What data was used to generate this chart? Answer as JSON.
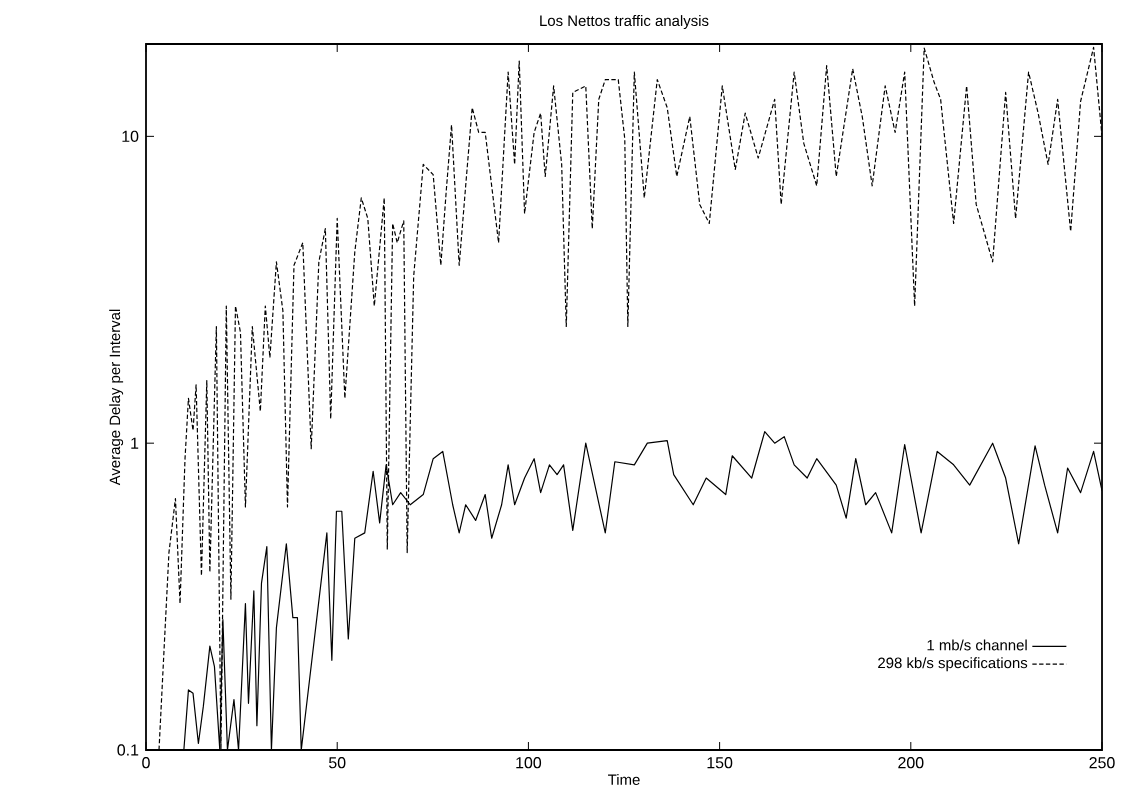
{
  "chart_data": {
    "type": "line",
    "title": "Los Nettos traffic analysis",
    "xlabel": "Time",
    "ylabel": "Average Delay per Interval",
    "xlim": [
      0,
      250
    ],
    "xticks": [
      0,
      50,
      100,
      150,
      200,
      250
    ],
    "ylim": [
      0.1,
      20
    ],
    "yticks": [
      0.1,
      1,
      10
    ],
    "log": true,
    "grid": false,
    "legend": "bottom right",
    "marker": "none",
    "series": [
      {
        "name": "1 mb/s channel",
        "color": "#000000",
        "line_style": "solid",
        "x": [
          9.9,
          11.1,
          12.3,
          13.7,
          15,
          16.7,
          17.9,
          19.3,
          20.1,
          21.3,
          23,
          24.2,
          26,
          26.8,
          28.2,
          29,
          30.2,
          31.6,
          32.8,
          34.1,
          36.7,
          38.4,
          39.6,
          40.6,
          47.3,
          48.6,
          49.8,
          51.2,
          52.9,
          54.6,
          57.2,
          59.4,
          61.1,
          62.8,
          64.5,
          66.6,
          69.1,
          72.5,
          75.1,
          77.6,
          80.2,
          81.9,
          83.6,
          86.2,
          88.7,
          90.4,
          93,
          94.7,
          96.4,
          99,
          101.5,
          103.2,
          105.5,
          107.5,
          109.2,
          111.6,
          115,
          120.1,
          122.6,
          127.7,
          131.1,
          136.3,
          138,
          143.1,
          146.5,
          151.6,
          153.3,
          158.4,
          161.8,
          164.4,
          166.9,
          169.5,
          172.9,
          175.4,
          180.5,
          183.1,
          185.6,
          188.2,
          190.8,
          195,
          198.4,
          202.7,
          206.9,
          211.2,
          215.4,
          221.4,
          224.8,
          228.2,
          232.5,
          235,
          238.4,
          241,
          244.4,
          247.8,
          250
        ],
        "values": [
          0.1,
          0.157,
          0.153,
          0.105,
          0.139,
          0.218,
          0.187,
          0.1,
          0.266,
          0.1,
          0.146,
          0.1,
          0.3,
          0.142,
          0.33,
          0.12,
          0.35,
          0.46,
          0.1,
          0.25,
          0.47,
          0.27,
          0.27,
          0.1,
          0.51,
          0.196,
          0.6,
          0.6,
          0.23,
          0.49,
          0.51,
          0.81,
          0.55,
          0.85,
          0.63,
          0.69,
          0.63,
          0.68,
          0.89,
          0.94,
          0.63,
          0.51,
          0.63,
          0.56,
          0.68,
          0.49,
          0.63,
          0.85,
          0.63,
          0.77,
          0.89,
          0.69,
          0.85,
          0.79,
          0.85,
          0.52,
          1.0,
          0.51,
          0.87,
          0.85,
          1.0,
          1.02,
          0.79,
          0.63,
          0.77,
          0.68,
          0.91,
          0.77,
          1.09,
          1.0,
          1.05,
          0.85,
          0.77,
          0.89,
          0.73,
          0.57,
          0.89,
          0.63,
          0.69,
          0.51,
          0.99,
          0.51,
          0.94,
          0.85,
          0.73,
          1.0,
          0.77,
          0.47,
          0.98,
          0.73,
          0.51,
          0.83,
          0.69,
          0.94,
          0.7
        ]
      },
      {
        "name": "298 kb/s specifications",
        "color": "#000000",
        "line_style": "dashed",
        "x": [
          3.4,
          6,
          7.7,
          8.9,
          10.2,
          11.1,
          12.3,
          13.1,
          14.5,
          15.9,
          16.7,
          18.4,
          19.6,
          21,
          22.2,
          23.4,
          24.7,
          26,
          27.8,
          29.9,
          31.2,
          32.4,
          34.1,
          35.8,
          37,
          38.7,
          41,
          43.2,
          45.2,
          46.9,
          48.3,
          50,
          52,
          54.6,
          56.3,
          58,
          59.7,
          62.3,
          63.1,
          64.5,
          65.7,
          67.4,
          68.3,
          70,
          72.5,
          75.1,
          77.1,
          78.5,
          79.9,
          81.9,
          83.6,
          85.3,
          87,
          88.7,
          92.2,
          94.7,
          96.4,
          97.6,
          99,
          101.5,
          103.2,
          104.4,
          106.6,
          108.7,
          109.9,
          111.6,
          115,
          116.7,
          118.4,
          120.1,
          123.5,
          125.2,
          126,
          127.7,
          130.3,
          133.7,
          136.3,
          138.8,
          142.2,
          144.8,
          147.3,
          150.7,
          154.1,
          156.7,
          160.1,
          164.4,
          166.1,
          169.5,
          172,
          175.4,
          178,
          180.5,
          184.8,
          187.3,
          189.9,
          193.3,
          195.9,
          198.4,
          201,
          203.5,
          206.1,
          207.8,
          211.2,
          214.6,
          217.1,
          221.4,
          224.8,
          227.4,
          230.8,
          233.3,
          235.9,
          238.4,
          241.8,
          244.4,
          247.8,
          250
        ],
        "values": [
          0.1,
          0.44,
          0.66,
          0.3,
          0.89,
          1.4,
          1.1,
          1.55,
          0.37,
          1.6,
          0.38,
          2.4,
          0.1,
          2.8,
          0.31,
          2.8,
          2.3,
          0.62,
          2.4,
          1.27,
          2.8,
          1.9,
          3.9,
          2.7,
          0.62,
          3.8,
          4.5,
          0.96,
          3.9,
          5.0,
          1.2,
          5.4,
          1.4,
          4.2,
          6.3,
          5.4,
          2.8,
          6.3,
          0.45,
          5.2,
          4.5,
          5.3,
          0.44,
          3.5,
          8.1,
          7.5,
          3.8,
          6.6,
          10.9,
          3.8,
          6.9,
          12.4,
          10.3,
          10.3,
          4.5,
          16.2,
          8.1,
          17.6,
          5.6,
          10.3,
          11.9,
          7.4,
          14.6,
          8.1,
          2.4,
          13.9,
          14.6,
          5.0,
          13.2,
          15.3,
          15.3,
          9.8,
          2.4,
          16.2,
          6.3,
          15.3,
          12.4,
          7.4,
          11.6,
          6.0,
          5.2,
          14.6,
          7.8,
          11.9,
          8.5,
          13.2,
          6.0,
          16.2,
          9.5,
          6.9,
          17.0,
          7.4,
          16.6,
          11.6,
          6.9,
          14.6,
          10.3,
          16.2,
          2.8,
          19.4,
          15.0,
          13.2,
          5.2,
          14.6,
          6.0,
          3.9,
          13.9,
          5.4,
          16.2,
          11.9,
          8.1,
          13.2,
          4.9,
          13,
          19.5,
          10
        ]
      }
    ]
  }
}
